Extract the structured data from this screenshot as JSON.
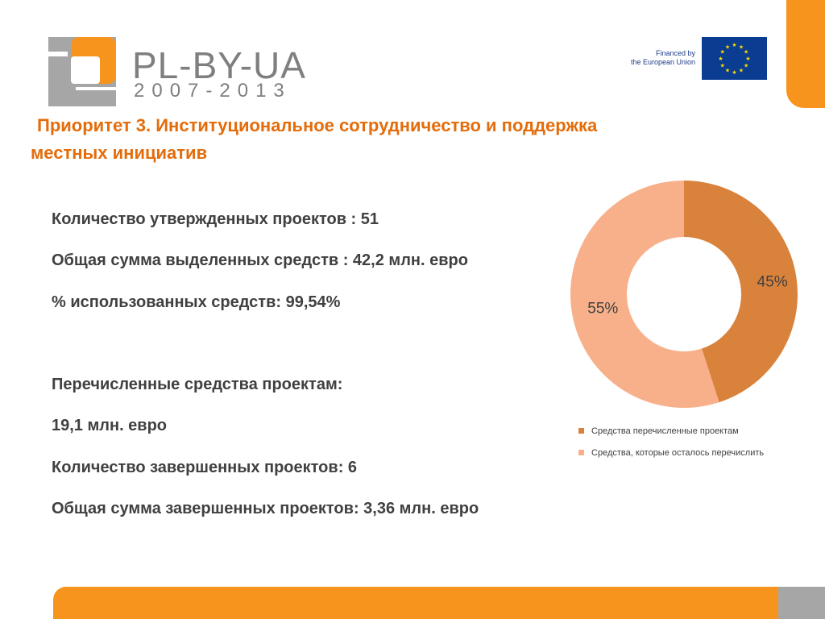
{
  "logo": {
    "title": "PL-BY-UA",
    "years": "2007-2013"
  },
  "eu_badge": {
    "line1": "Financed by",
    "line2": "the European Union"
  },
  "heading": {
    "line1": "Приоритет 3. Институциональное сотрудничество и поддержка",
    "line2": "местных инициатив"
  },
  "stats": [
    "Количество утвержденных проектов : 51",
    "Общая сумма выделенных средств : 42,2 млн. евро",
    "% использованных средств: 99,54%",
    "Перечисленные средства проектам:",
    "19,1 млн. евро",
    "Количество завершенных проектов: 6",
    "Общая сумма завершенных проектов: 3,36 млн. евро"
  ],
  "colors": {
    "accent": "#f7941d",
    "heading": "#e46c0a",
    "text": "#404040",
    "slice_transferred": "#d9823b",
    "slice_remaining": "#f7b08a",
    "eu_blue": "#0a3d91",
    "eu_gold": "#ffdd00"
  },
  "icons": {
    "logo_mark": "pl-by-ua-logo-icon",
    "eu_flag": "eu-flag-icon"
  },
  "chart_data": {
    "type": "pie",
    "subtype": "donut",
    "series": [
      {
        "name": "Средства перечисленные проектам",
        "value": 45,
        "label": "45%",
        "color": "#d9823b"
      },
      {
        "name": "Средства, которые осталось перечислить",
        "value": 55,
        "label": "55%",
        "color": "#f7b08a"
      }
    ],
    "legend_position": "bottom"
  }
}
